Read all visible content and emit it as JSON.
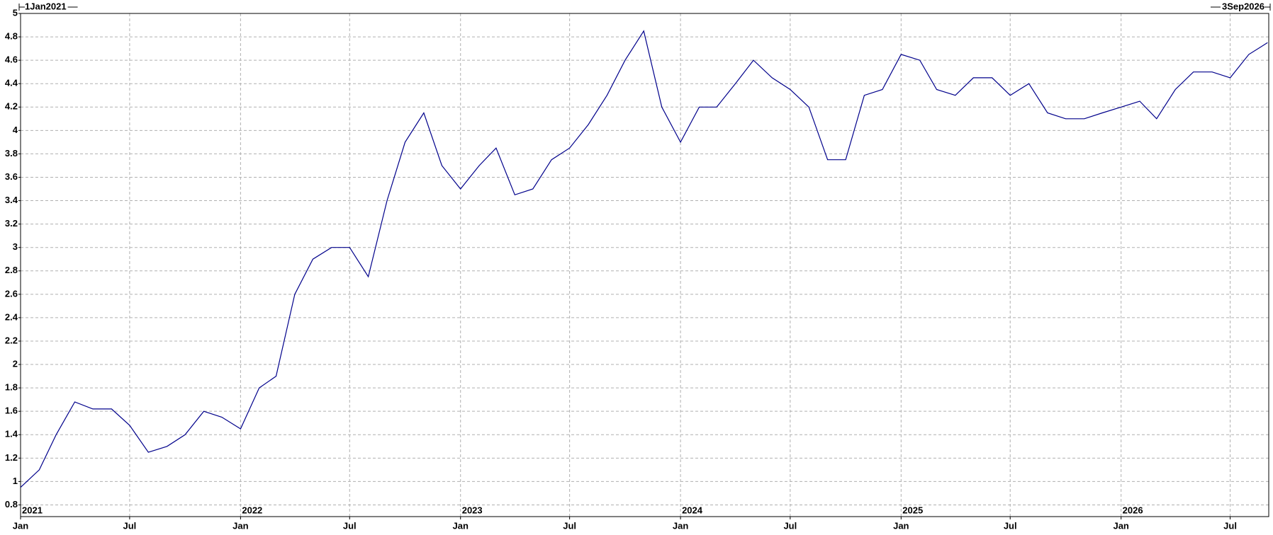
{
  "chart_data": {
    "type": "line",
    "x": [
      "2021-01",
      "2021-02",
      "2021-03",
      "2021-04",
      "2021-05",
      "2021-06",
      "2021-07",
      "2021-08",
      "2021-09",
      "2021-10",
      "2021-11",
      "2021-12",
      "2022-01",
      "2022-02",
      "2022-03",
      "2022-04",
      "2022-05",
      "2022-06",
      "2022-07",
      "2022-08",
      "2022-09",
      "2022-10",
      "2022-11",
      "2022-12",
      "2023-01",
      "2023-02",
      "2023-03",
      "2023-04",
      "2023-05",
      "2023-06",
      "2023-07",
      "2023-08",
      "2023-09",
      "2023-10",
      "2023-11",
      "2023-12",
      "2024-01",
      "2024-02",
      "2024-03",
      "2024-04",
      "2024-05",
      "2024-06",
      "2024-07",
      "2024-08",
      "2024-09",
      "2024-10",
      "2024-11",
      "2024-12",
      "2025-01",
      "2025-02",
      "2025-03",
      "2025-04",
      "2025-05",
      "2025-06",
      "2025-07",
      "2025-08",
      "2025-09",
      "2025-10",
      "2025-11",
      "2025-12",
      "2026-01",
      "2026-02",
      "2026-03",
      "2026-04",
      "2026-05",
      "2026-06",
      "2026-07",
      "2026-08",
      "2026-09"
    ],
    "series": [
      {
        "color": "#00008b",
        "values": [
          0.95,
          1.1,
          1.4,
          1.68,
          1.62,
          1.62,
          1.48,
          1.25,
          1.3,
          1.4,
          1.6,
          1.55,
          1.45,
          1.8,
          1.9,
          2.6,
          2.9,
          3.0,
          3.0,
          2.75,
          3.4,
          3.9,
          4.15,
          3.7,
          3.5,
          3.7,
          3.85,
          3.45,
          3.5,
          3.75,
          3.85,
          4.05,
          4.3,
          4.6,
          4.85,
          4.2,
          3.9,
          4.2,
          4.2,
          4.4,
          4.6,
          4.45,
          4.35,
          4.2,
          3.75,
          3.75,
          4.3,
          4.35,
          4.65,
          4.6,
          4.35,
          4.3,
          4.45,
          4.45,
          4.3,
          4.4,
          4.15,
          4.1,
          4.1,
          4.15,
          4.2,
          4.25,
          4.1,
          4.35,
          4.5,
          4.5,
          4.45,
          4.65,
          4.75
        ]
      }
    ],
    "xlim": [
      {
        "value": "2021-01-01",
        "label": "1Jan2021"
      },
      {
        "value": "2026-09-03",
        "label": "3Sep2026"
      }
    ],
    "xticks": [
      {
        "value": "2021-01",
        "label": "Jan"
      },
      {
        "value": "2021-07",
        "label": "Jul"
      },
      {
        "value": "2022-01",
        "label": "Jan"
      },
      {
        "value": "2022-07",
        "label": "Jul"
      },
      {
        "value": "2023-01",
        "label": "Jan"
      },
      {
        "value": "2023-07",
        "label": "Jul"
      },
      {
        "value": "2024-01",
        "label": "Jan"
      },
      {
        "value": "2024-07",
        "label": "Jul"
      },
      {
        "value": "2025-01",
        "label": "Jan"
      },
      {
        "value": "2025-07",
        "label": "Jul"
      },
      {
        "value": "2026-01",
        "label": "Jan"
      },
      {
        "value": "2026-07",
        "label": "Jul"
      }
    ],
    "year_labels": [
      {
        "value": "2021-01",
        "label": "2021"
      },
      {
        "value": "2022-01",
        "label": "2022"
      },
      {
        "value": "2023-01",
        "label": "2023"
      },
      {
        "value": "2024-01",
        "label": "2024"
      },
      {
        "value": "2025-01",
        "label": "2025"
      },
      {
        "value": "2026-01",
        "label": "2026"
      }
    ],
    "ylim": [
      0.7,
      5
    ],
    "yticks": [
      0.8,
      1,
      1.2,
      1.4,
      1.6,
      1.8,
      2,
      2.2,
      2.4,
      2.6,
      2.8,
      3,
      3.2,
      3.4,
      3.6,
      3.8,
      4,
      4.2,
      4.4,
      4.6,
      4.8,
      5
    ],
    "grid": true
  }
}
